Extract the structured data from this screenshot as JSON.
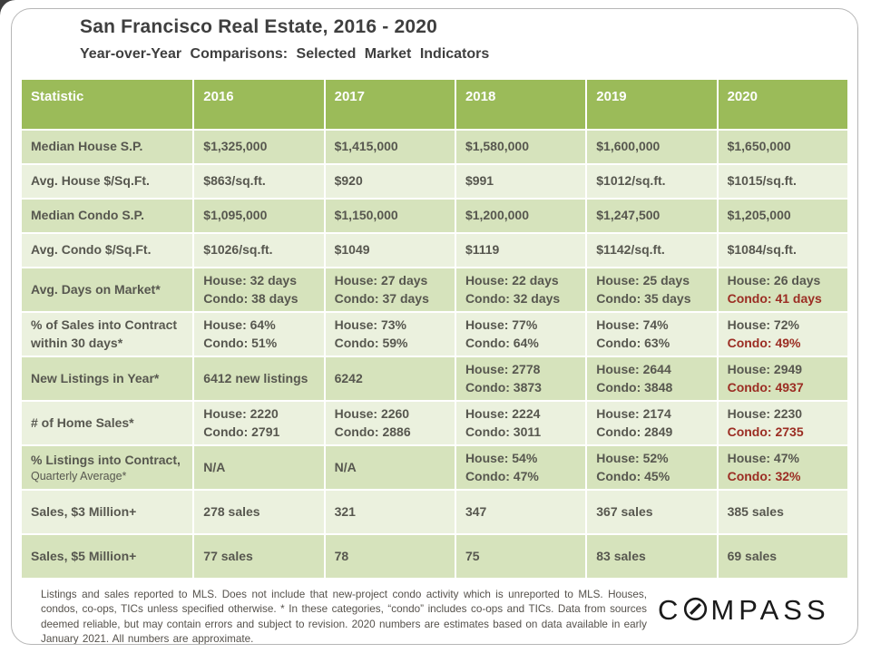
{
  "slide": {
    "title": "San Francisco Real Estate, 2016 - 2020",
    "subtitle": "Year-over-Year Comparisons: Selected Market Indicators"
  },
  "table": {
    "columns": [
      "Statistic",
      "2016",
      "2017",
      "2018",
      "2019",
      "2020"
    ],
    "rows": [
      {
        "label": "Median House S.P.",
        "cells": [
          [
            {
              "t": "$1,325,000"
            }
          ],
          [
            {
              "t": "$1,415,000"
            }
          ],
          [
            {
              "t": "$1,580,000"
            }
          ],
          [
            {
              "t": "$1,600,000"
            }
          ],
          [
            {
              "t": "$1,650,000"
            }
          ]
        ]
      },
      {
        "label": "Avg. House $/Sq.Ft.",
        "cells": [
          [
            {
              "t": "$863/sq.ft."
            }
          ],
          [
            {
              "t": "$920"
            }
          ],
          [
            {
              "t": "$991"
            }
          ],
          [
            {
              "t": "$1012/sq.ft."
            }
          ],
          [
            {
              "t": "$1015/sq.ft."
            }
          ]
        ]
      },
      {
        "label": "Median Condo S.P.",
        "cells": [
          [
            {
              "t": "$1,095,000"
            }
          ],
          [
            {
              "t": "$1,150,000"
            }
          ],
          [
            {
              "t": "$1,200,000"
            }
          ],
          [
            {
              "t": "$1,247,500"
            }
          ],
          [
            {
              "t": "$1,205,000"
            }
          ]
        ]
      },
      {
        "label": "Avg. Condo $/Sq.Ft.",
        "cells": [
          [
            {
              "t": "$1026/sq.ft."
            }
          ],
          [
            {
              "t": "$1049"
            }
          ],
          [
            {
              "t": "$1119"
            }
          ],
          [
            {
              "t": "$1142/sq.ft."
            }
          ],
          [
            {
              "t": "$1084/sq.ft."
            }
          ]
        ]
      },
      {
        "label": "Avg. Days on Market*",
        "cells": [
          [
            {
              "t": "House: 32 days"
            },
            {
              "t": "Condo: 38 days"
            }
          ],
          [
            {
              "t": "House: 27 days"
            },
            {
              "t": "Condo: 37 days"
            }
          ],
          [
            {
              "t": "House: 22 days"
            },
            {
              "t": "Condo: 32 days"
            }
          ],
          [
            {
              "t": "House: 25 days"
            },
            {
              "t": "Condo: 35 days"
            }
          ],
          [
            {
              "t": "House: 26 days"
            },
            {
              "t": "Condo: 41 days",
              "red": true
            }
          ]
        ]
      },
      {
        "label": "% of Sales into Contract within 30 days*",
        "cells": [
          [
            {
              "t": "House: 64%"
            },
            {
              "t": "Condo: 51%"
            }
          ],
          [
            {
              "t": "House: 73%"
            },
            {
              "t": "Condo: 59%"
            }
          ],
          [
            {
              "t": "House: 77%"
            },
            {
              "t": "Condo: 64%"
            }
          ],
          [
            {
              "t": "House: 74%"
            },
            {
              "t": "Condo: 63%"
            }
          ],
          [
            {
              "t": "House: 72%"
            },
            {
              "t": "Condo: 49%",
              "red": true
            }
          ]
        ]
      },
      {
        "label": "New Listings in Year*",
        "cells": [
          [
            {
              "t": "6412 new listings"
            }
          ],
          [
            {
              "t": "6242"
            }
          ],
          [
            {
              "t": "House: 2778"
            },
            {
              "t": "Condo: 3873"
            }
          ],
          [
            {
              "t": "House: 2644"
            },
            {
              "t": "Condo: 3848"
            }
          ],
          [
            {
              "t": "House: 2949"
            },
            {
              "t": "Condo: 4937",
              "red": true
            }
          ]
        ]
      },
      {
        "label": "# of Home Sales*",
        "cells": [
          [
            {
              "t": "House: 2220"
            },
            {
              "t": "Condo: 2791"
            }
          ],
          [
            {
              "t": "House: 2260"
            },
            {
              "t": "Condo: 2886"
            }
          ],
          [
            {
              "t": "House: 2224"
            },
            {
              "t": "Condo: 3011"
            }
          ],
          [
            {
              "t": "House: 2174"
            },
            {
              "t": "Condo: 2849"
            }
          ],
          [
            {
              "t": "House: 2230"
            },
            {
              "t": "Condo: 2735",
              "red": true
            }
          ]
        ]
      },
      {
        "label": "% Listings into Contract,",
        "sublabel": "Quarterly Average*",
        "cells": [
          [
            {
              "t": "N/A"
            }
          ],
          [
            {
              "t": "N/A"
            }
          ],
          [
            {
              "t": "House: 54%"
            },
            {
              "t": "Condo: 47%"
            }
          ],
          [
            {
              "t": "House: 52%"
            },
            {
              "t": "Condo: 45%"
            }
          ],
          [
            {
              "t": "House: 47%"
            },
            {
              "t": "Condo: 32%",
              "red": true
            }
          ]
        ]
      },
      {
        "label": "Sales, $3 Million+",
        "cells": [
          [
            {
              "t": "278 sales"
            }
          ],
          [
            {
              "t": "321"
            }
          ],
          [
            {
              "t": "347"
            }
          ],
          [
            {
              "t": "367 sales"
            }
          ],
          [
            {
              "t": "385 sales"
            }
          ]
        ]
      },
      {
        "label": "Sales, $5 Million+",
        "cells": [
          [
            {
              "t": "77 sales"
            }
          ],
          [
            {
              "t": "78"
            }
          ],
          [
            {
              "t": "75"
            }
          ],
          [
            {
              "t": "83 sales"
            }
          ],
          [
            {
              "t": "69 sales"
            }
          ]
        ]
      }
    ]
  },
  "footnote": "Listings and sales reported to MLS. Does not include that new-project condo activity which is unreported to MLS. Houses, condos, co-ops, TICs unless specified otherwise. * In these categories, “condo” includes co-ops and TICs. Data from sources deemed reliable, but may contain errors and subject to revision. 2020 numbers are estimates based on data available in early January 2021. All numbers are approximate.",
  "logo": {
    "prefix": "C",
    "suffix": "MPASS"
  },
  "colors": {
    "header_green": "#9bbb59",
    "band_dark": "#d6e3bc",
    "band_light": "#ebf1de",
    "cell_text": "#57574f",
    "highlight_red": "#9b2d23",
    "title_gray": "#3f3f3f"
  }
}
